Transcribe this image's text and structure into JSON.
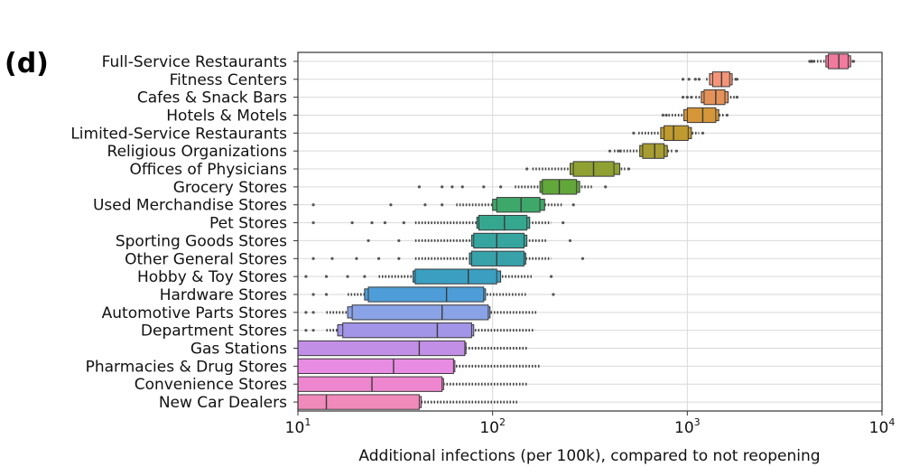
{
  "panel_label": "(d)",
  "chart_data": {
    "type": "boxen",
    "orientation": "horizontal",
    "xscale": "log",
    "xlim": [
      10,
      10000
    ],
    "xticks": [
      {
        "value": 10,
        "base": "10",
        "exp": "1"
      },
      {
        "value": 100,
        "base": "10",
        "exp": "2"
      },
      {
        "value": 1000,
        "base": "10",
        "exp": "3"
      },
      {
        "value": 10000,
        "base": "10",
        "exp": "4"
      }
    ],
    "xlabel": "Additional infections (per 100k), compared to not reopening",
    "ylabel": "",
    "grid": true,
    "categories": [
      {
        "name": "Full-Service Restaurants",
        "color": "#f27a9e",
        "boxes": [
          [
            5300,
            6700
          ],
          [
            5150,
            6900
          ]
        ],
        "median": 6000,
        "whiskers": [
          4300,
          7100
        ],
        "outliers": [
          4250,
          4300,
          4350,
          4400,
          7150
        ]
      },
      {
        "name": "Fitness Centers",
        "color": "#f49579",
        "boxes": [
          [
            1350,
            1650
          ],
          [
            1300,
            1700
          ]
        ],
        "median": 1500,
        "whiskers": [
          1250,
          1800
        ],
        "outliers": [
          950,
          1020,
          1100,
          1150,
          1800
        ]
      },
      {
        "name": "Cafes & Snack Bars",
        "color": "#e5925a",
        "boxes": [
          [
            1220,
            1560
          ],
          [
            1180,
            1620
          ]
        ],
        "median": 1400,
        "whiskers": [
          1100,
          1750
        ],
        "outliers": [
          950,
          1000,
          1050,
          1800
        ]
      },
      {
        "name": "Hotels & Motels",
        "color": "#d5963a",
        "boxes": [
          [
            1000,
            1400
          ],
          [
            960,
            1450
          ]
        ],
        "median": 1200,
        "whiskers": [
          800,
          1550
        ],
        "outliers": [
          750,
          780,
          1600
        ]
      },
      {
        "name": "Limited-Service Restaurants",
        "color": "#c09a2e",
        "boxes": [
          [
            760,
            1010
          ],
          [
            730,
            1050
          ]
        ],
        "median": 850,
        "whiskers": [
          560,
          1150
        ],
        "outliers": [
          530,
          1200
        ]
      },
      {
        "name": "Religious Organizations",
        "color": "#a89d32",
        "boxes": [
          [
            590,
            760
          ],
          [
            570,
            790
          ]
        ],
        "median": 680,
        "whiskers": [
          420,
          850
        ],
        "outliers": [
          400,
          450,
          880
        ]
      },
      {
        "name": "Offices of Physicians",
        "color": "#90a134",
        "boxes": [
          [
            260,
            420
          ],
          [
            250,
            450
          ]
        ],
        "median": 330,
        "whiskers": [
          160,
          480
        ],
        "outliers": [
          150,
          500
        ]
      },
      {
        "name": "Grocery Stores",
        "color": "#62a73a",
        "boxes": [
          [
            180,
            270
          ],
          [
            175,
            280
          ]
        ],
        "median": 220,
        "whiskers": [
          130,
          330
        ],
        "outliers": [
          42,
          55,
          62,
          70,
          90,
          110,
          380
        ]
      },
      {
        "name": "Used Merchandise Stores",
        "color": "#3ea86a",
        "boxes": [
          [
            105,
            175
          ],
          [
            100,
            185
          ]
        ],
        "median": 140,
        "whiskers": [
          65,
          230
        ],
        "outliers": [
          12,
          30,
          45,
          55,
          260
        ]
      },
      {
        "name": "Pet Stores",
        "color": "#35a78f",
        "boxes": [
          [
            85,
            150
          ],
          [
            83,
            155
          ]
        ],
        "median": 115,
        "whiskers": [
          40,
          200
        ],
        "outliers": [
          12,
          19,
          24,
          28,
          35,
          230
        ]
      },
      {
        "name": "Sporting Goods Stores",
        "color": "#36a59f",
        "boxes": [
          [
            80,
            145
          ],
          [
            78,
            150
          ]
        ],
        "median": 105,
        "whiskers": [
          40,
          190
        ],
        "outliers": [
          23,
          33,
          250
        ]
      },
      {
        "name": "Other General Stores",
        "color": "#38a2ab",
        "boxes": [
          [
            78,
            145
          ],
          [
            76,
            148
          ]
        ],
        "median": 105,
        "whiskers": [
          40,
          200
        ],
        "outliers": [
          12,
          15,
          20,
          26,
          33,
          290
        ]
      },
      {
        "name": "Hobby & Toy Stores",
        "color": "#3a9fc1",
        "boxes": [
          [
            40,
            105
          ],
          [
            39,
            110
          ]
        ],
        "median": 75,
        "whiskers": [
          26,
          160
        ],
        "outliers": [
          11,
          14,
          18,
          22,
          200
        ]
      },
      {
        "name": "Hardware Stores",
        "color": "#4e9dd8",
        "boxes": [
          [
            23,
            90
          ],
          [
            22,
            92
          ]
        ],
        "median": 58,
        "whiskers": [
          18,
          150
        ],
        "outliers": [
          12,
          14,
          205
        ]
      },
      {
        "name": "Automotive Parts Stores",
        "color": "#8aa3e6",
        "boxes": [
          [
            19,
            95
          ],
          [
            18,
            97
          ]
        ],
        "median": 55,
        "whiskers": [
          14,
          170
        ],
        "outliers": [
          11,
          12
        ]
      },
      {
        "name": "Department Stores",
        "color": "#a294e6",
        "boxes": [
          [
            17,
            78
          ],
          [
            16,
            80
          ]
        ],
        "median": 52,
        "whiskers": [
          14,
          165
        ],
        "outliers": [
          11,
          12
        ]
      },
      {
        "name": "Gas Stations",
        "color": "#c28fe6",
        "boxes": [
          [
            10,
            72
          ],
          [
            10,
            73
          ]
        ],
        "median": 42,
        "whiskers": [
          10,
          150
        ],
        "outliers": []
      },
      {
        "name": "Pharmacies & Drug Stores",
        "color": "#e88ce3",
        "boxes": [
          [
            10,
            63
          ],
          [
            10,
            64
          ]
        ],
        "median": 31,
        "whiskers": [
          10,
          175
        ],
        "outliers": []
      },
      {
        "name": "Convenience Stores",
        "color": "#ee86cf",
        "boxes": [
          [
            10,
            55
          ],
          [
            10,
            56
          ]
        ],
        "median": 24,
        "whiskers": [
          10,
          150
        ],
        "outliers": []
      },
      {
        "name": "New Car Dealers",
        "color": "#f08aba",
        "boxes": [
          [
            10,
            42
          ],
          [
            10,
            43
          ]
        ],
        "median": 14,
        "whiskers": [
          10,
          135
        ],
        "outliers": []
      }
    ]
  }
}
